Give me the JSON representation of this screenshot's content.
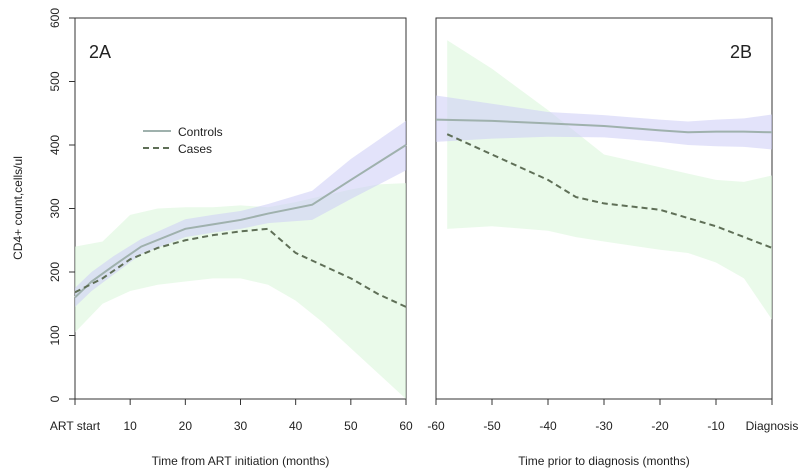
{
  "colors": {
    "controls_line": "#9fb1ad",
    "cases_line": "#5f6f57",
    "controls_band": "#ccccf5",
    "cases_band": "#dcf7dc",
    "axis": "#333333"
  },
  "legend": {
    "controls": "Controls",
    "cases": "Cases"
  },
  "chart_data": [
    {
      "type": "line",
      "panel_label": "2A",
      "xlabel": "Time from ART initiation (months)",
      "ylabel": "CD4+ count,cells/ul",
      "xlim": [
        0,
        60
      ],
      "ylim": [
        0,
        600
      ],
      "x_ticks": [
        {
          "value": 0,
          "label": "ART start"
        },
        {
          "value": 10,
          "label": "10"
        },
        {
          "value": 20,
          "label": "20"
        },
        {
          "value": 30,
          "label": "30"
        },
        {
          "value": 40,
          "label": "40"
        },
        {
          "value": 50,
          "label": "50"
        },
        {
          "value": 60,
          "label": "60"
        }
      ],
      "y_ticks": [
        {
          "value": 0,
          "label": "0"
        },
        {
          "value": 100,
          "label": "100"
        },
        {
          "value": 200,
          "label": "200"
        },
        {
          "value": 300,
          "label": "300"
        },
        {
          "value": 400,
          "label": "400"
        },
        {
          "value": 500,
          "label": "500"
        },
        {
          "value": 600,
          "label": "600"
        }
      ],
      "series": [
        {
          "name": "Controls",
          "style": "solid",
          "x": [
            0,
            3,
            7,
            12,
            20,
            25,
            30,
            35,
            43,
            50,
            60
          ],
          "y": [
            160,
            185,
            210,
            240,
            268,
            275,
            282,
            292,
            306,
            345,
            400
          ],
          "upper": [
            175,
            200,
            225,
            252,
            283,
            290,
            296,
            307,
            328,
            378,
            438
          ],
          "lower": [
            145,
            170,
            196,
            228,
            255,
            262,
            268,
            277,
            282,
            315,
            360
          ]
        },
        {
          "name": "Cases",
          "style": "dashed",
          "x": [
            0,
            5,
            10,
            15,
            20,
            25,
            30,
            35,
            40,
            45,
            50,
            55,
            60
          ],
          "y": [
            168,
            190,
            220,
            238,
            250,
            258,
            264,
            268,
            230,
            210,
            190,
            165,
            145
          ],
          "upper": [
            240,
            248,
            290,
            300,
            302,
            302,
            305,
            302,
            310,
            320,
            330,
            338,
            340
          ],
          "lower": [
            105,
            150,
            170,
            180,
            185,
            190,
            190,
            180,
            155,
            120,
            80,
            40,
            0
          ]
        }
      ]
    },
    {
      "type": "line",
      "panel_label": "2B",
      "xlabel": "Time prior to diagnosis (months)",
      "ylabel": "",
      "xlim": [
        -60,
        0
      ],
      "ylim": [
        0,
        600
      ],
      "x_ticks": [
        {
          "value": -60,
          "label": "-60"
        },
        {
          "value": -50,
          "label": "-50"
        },
        {
          "value": -40,
          "label": "-40"
        },
        {
          "value": -30,
          "label": "-30"
        },
        {
          "value": -20,
          "label": "-20"
        },
        {
          "value": -10,
          "label": "-10"
        },
        {
          "value": 0,
          "label": "Diagnosis"
        }
      ],
      "series": [
        {
          "name": "Controls",
          "style": "solid",
          "x": [
            -60,
            -50,
            -40,
            -30,
            -20,
            -15,
            -10,
            -5,
            0
          ],
          "y": [
            440,
            438,
            434,
            430,
            423,
            420,
            421,
            421,
            420
          ],
          "upper": [
            478,
            465,
            452,
            447,
            440,
            437,
            440,
            442,
            448
          ],
          "lower": [
            405,
            410,
            413,
            412,
            405,
            400,
            398,
            397,
            393
          ]
        },
        {
          "name": "Cases",
          "style": "dashed",
          "x": [
            -58,
            -50,
            -40,
            -35,
            -30,
            -20,
            -15,
            -10,
            -5,
            0
          ],
          "y": [
            417,
            385,
            345,
            318,
            308,
            298,
            285,
            272,
            255,
            238
          ],
          "upper": [
            565,
            520,
            455,
            420,
            385,
            365,
            355,
            345,
            342,
            352
          ],
          "lower": [
            268,
            272,
            265,
            255,
            248,
            235,
            230,
            215,
            190,
            125
          ]
        }
      ]
    }
  ]
}
